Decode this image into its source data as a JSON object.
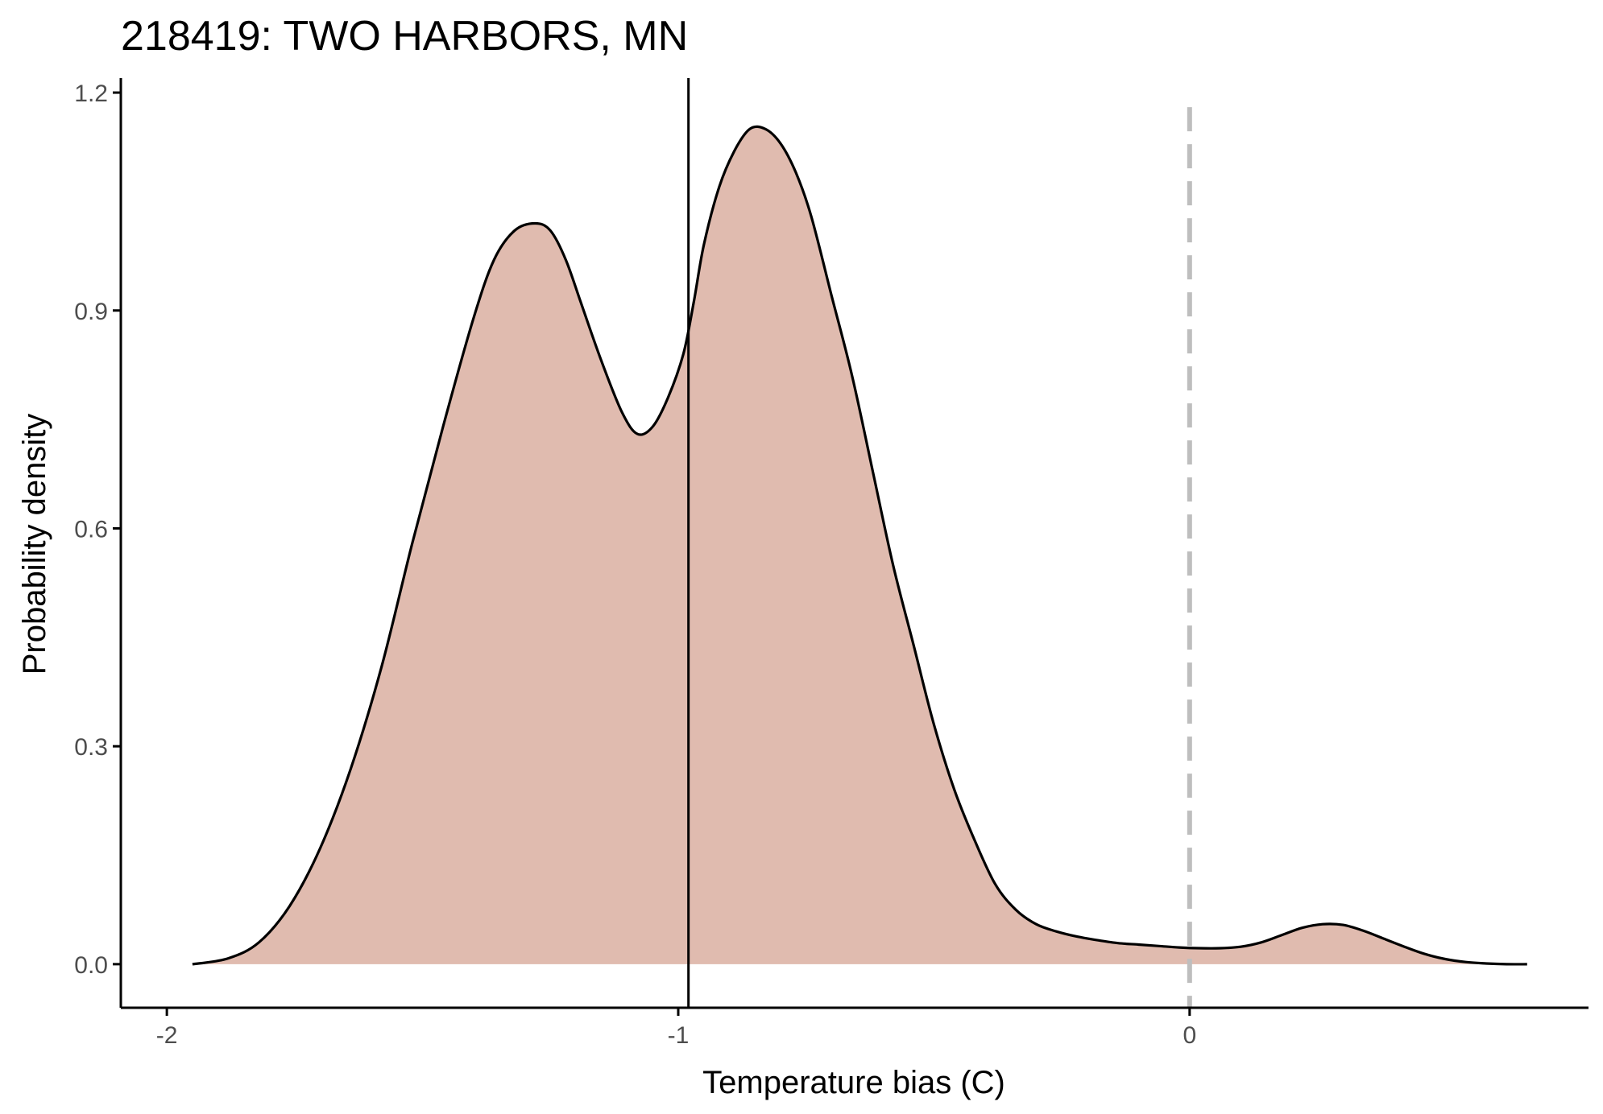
{
  "chart_data": {
    "type": "area",
    "title": "218419: TWO HARBORS, MN",
    "xlabel": "Temperature bias (C)",
    "ylabel": "Probability density",
    "xlim": [
      -2.09,
      0.78
    ],
    "ylim": [
      -0.06,
      1.22
    ],
    "x_ticks": [
      -2,
      -1,
      0
    ],
    "x_tick_labels": [
      "-2",
      "-1",
      "0"
    ],
    "y_ticks": [
      0.0,
      0.3,
      0.6,
      0.9,
      1.2
    ],
    "y_tick_labels": [
      "0.0",
      "0.3",
      "0.6",
      "0.9",
      "1.2"
    ],
    "grid": false,
    "legend": "none",
    "fill_color": "#e0bbaf",
    "line_color": "#000000",
    "series": [
      {
        "x": [
          -1.95,
          -1.88,
          -1.82,
          -1.76,
          -1.7,
          -1.64,
          -1.58,
          -1.52,
          -1.46,
          -1.4,
          -1.36,
          -1.32,
          -1.28,
          -1.25,
          -1.22,
          -1.19,
          -1.15,
          -1.11,
          -1.08,
          -1.05,
          -1.02,
          -0.99,
          -0.97,
          -0.95,
          -0.92,
          -0.89,
          -0.86,
          -0.83,
          -0.8,
          -0.77,
          -0.74,
          -0.7,
          -0.66,
          -0.62,
          -0.58,
          -0.54,
          -0.5,
          -0.46,
          -0.42,
          -0.38,
          -0.34,
          -0.3,
          -0.26,
          -0.22,
          -0.18,
          -0.14,
          -0.1,
          -0.06,
          -0.02,
          0.02,
          0.06,
          0.1,
          0.14,
          0.18,
          0.22,
          0.26,
          0.3,
          0.34,
          0.38,
          0.42,
          0.46,
          0.5,
          0.54,
          0.58,
          0.62,
          0.66
        ],
        "y": [
          0.0,
          0.008,
          0.03,
          0.08,
          0.16,
          0.27,
          0.41,
          0.58,
          0.74,
          0.89,
          0.97,
          1.01,
          1.02,
          1.01,
          0.97,
          0.91,
          0.83,
          0.76,
          0.73,
          0.74,
          0.78,
          0.84,
          0.91,
          0.99,
          1.07,
          1.12,
          1.15,
          1.15,
          1.13,
          1.09,
          1.03,
          0.92,
          0.81,
          0.68,
          0.55,
          0.44,
          0.33,
          0.24,
          0.17,
          0.11,
          0.075,
          0.055,
          0.045,
          0.038,
          0.033,
          0.029,
          0.027,
          0.025,
          0.023,
          0.022,
          0.022,
          0.024,
          0.03,
          0.04,
          0.05,
          0.055,
          0.054,
          0.046,
          0.035,
          0.024,
          0.014,
          0.007,
          0.003,
          0.001,
          0.0,
          0.0
        ]
      }
    ],
    "reference_lines": [
      {
        "x": -0.98,
        "style": "solid",
        "color": "#000000"
      },
      {
        "x": 0.0,
        "style": "dashed",
        "color": "#bebebe"
      }
    ]
  }
}
